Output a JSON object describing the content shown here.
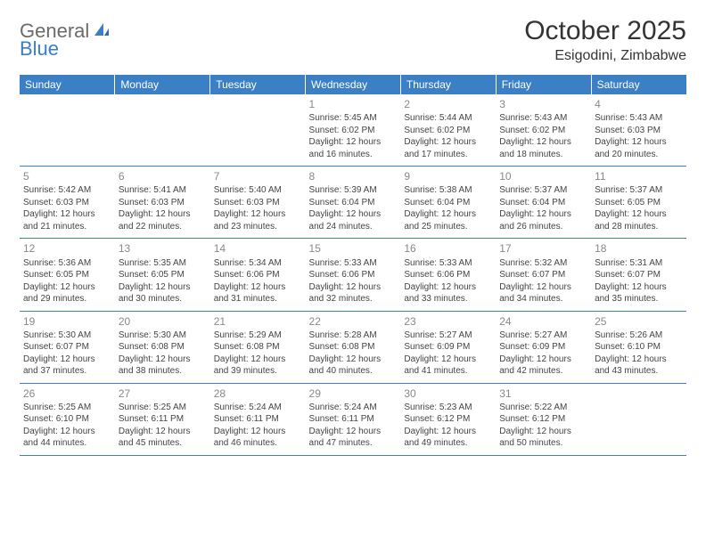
{
  "logo": {
    "general": "General",
    "blue": "Blue"
  },
  "title": "October 2025",
  "location": "Esigodini, Zimbabwe",
  "colors": {
    "header_bg": "#3b7fc4",
    "header_text": "#ffffff",
    "daynum": "#888888",
    "body_text": "#444444",
    "border": "#3b7fc4"
  },
  "weekdays": [
    "Sunday",
    "Monday",
    "Tuesday",
    "Wednesday",
    "Thursday",
    "Friday",
    "Saturday"
  ],
  "weeks": [
    [
      null,
      null,
      null,
      {
        "n": "1",
        "sr": "Sunrise: 5:45 AM",
        "ss": "Sunset: 6:02 PM",
        "d1": "Daylight: 12 hours",
        "d2": "and 16 minutes."
      },
      {
        "n": "2",
        "sr": "Sunrise: 5:44 AM",
        "ss": "Sunset: 6:02 PM",
        "d1": "Daylight: 12 hours",
        "d2": "and 17 minutes."
      },
      {
        "n": "3",
        "sr": "Sunrise: 5:43 AM",
        "ss": "Sunset: 6:02 PM",
        "d1": "Daylight: 12 hours",
        "d2": "and 18 minutes."
      },
      {
        "n": "4",
        "sr": "Sunrise: 5:43 AM",
        "ss": "Sunset: 6:03 PM",
        "d1": "Daylight: 12 hours",
        "d2": "and 20 minutes."
      }
    ],
    [
      {
        "n": "5",
        "sr": "Sunrise: 5:42 AM",
        "ss": "Sunset: 6:03 PM",
        "d1": "Daylight: 12 hours",
        "d2": "and 21 minutes."
      },
      {
        "n": "6",
        "sr": "Sunrise: 5:41 AM",
        "ss": "Sunset: 6:03 PM",
        "d1": "Daylight: 12 hours",
        "d2": "and 22 minutes."
      },
      {
        "n": "7",
        "sr": "Sunrise: 5:40 AM",
        "ss": "Sunset: 6:03 PM",
        "d1": "Daylight: 12 hours",
        "d2": "and 23 minutes."
      },
      {
        "n": "8",
        "sr": "Sunrise: 5:39 AM",
        "ss": "Sunset: 6:04 PM",
        "d1": "Daylight: 12 hours",
        "d2": "and 24 minutes."
      },
      {
        "n": "9",
        "sr": "Sunrise: 5:38 AM",
        "ss": "Sunset: 6:04 PM",
        "d1": "Daylight: 12 hours",
        "d2": "and 25 minutes."
      },
      {
        "n": "10",
        "sr": "Sunrise: 5:37 AM",
        "ss": "Sunset: 6:04 PM",
        "d1": "Daylight: 12 hours",
        "d2": "and 26 minutes."
      },
      {
        "n": "11",
        "sr": "Sunrise: 5:37 AM",
        "ss": "Sunset: 6:05 PM",
        "d1": "Daylight: 12 hours",
        "d2": "and 28 minutes."
      }
    ],
    [
      {
        "n": "12",
        "sr": "Sunrise: 5:36 AM",
        "ss": "Sunset: 6:05 PM",
        "d1": "Daylight: 12 hours",
        "d2": "and 29 minutes."
      },
      {
        "n": "13",
        "sr": "Sunrise: 5:35 AM",
        "ss": "Sunset: 6:05 PM",
        "d1": "Daylight: 12 hours",
        "d2": "and 30 minutes."
      },
      {
        "n": "14",
        "sr": "Sunrise: 5:34 AM",
        "ss": "Sunset: 6:06 PM",
        "d1": "Daylight: 12 hours",
        "d2": "and 31 minutes."
      },
      {
        "n": "15",
        "sr": "Sunrise: 5:33 AM",
        "ss": "Sunset: 6:06 PM",
        "d1": "Daylight: 12 hours",
        "d2": "and 32 minutes."
      },
      {
        "n": "16",
        "sr": "Sunrise: 5:33 AM",
        "ss": "Sunset: 6:06 PM",
        "d1": "Daylight: 12 hours",
        "d2": "and 33 minutes."
      },
      {
        "n": "17",
        "sr": "Sunrise: 5:32 AM",
        "ss": "Sunset: 6:07 PM",
        "d1": "Daylight: 12 hours",
        "d2": "and 34 minutes."
      },
      {
        "n": "18",
        "sr": "Sunrise: 5:31 AM",
        "ss": "Sunset: 6:07 PM",
        "d1": "Daylight: 12 hours",
        "d2": "and 35 minutes."
      }
    ],
    [
      {
        "n": "19",
        "sr": "Sunrise: 5:30 AM",
        "ss": "Sunset: 6:07 PM",
        "d1": "Daylight: 12 hours",
        "d2": "and 37 minutes."
      },
      {
        "n": "20",
        "sr": "Sunrise: 5:30 AM",
        "ss": "Sunset: 6:08 PM",
        "d1": "Daylight: 12 hours",
        "d2": "and 38 minutes."
      },
      {
        "n": "21",
        "sr": "Sunrise: 5:29 AM",
        "ss": "Sunset: 6:08 PM",
        "d1": "Daylight: 12 hours",
        "d2": "and 39 minutes."
      },
      {
        "n": "22",
        "sr": "Sunrise: 5:28 AM",
        "ss": "Sunset: 6:08 PM",
        "d1": "Daylight: 12 hours",
        "d2": "and 40 minutes."
      },
      {
        "n": "23",
        "sr": "Sunrise: 5:27 AM",
        "ss": "Sunset: 6:09 PM",
        "d1": "Daylight: 12 hours",
        "d2": "and 41 minutes."
      },
      {
        "n": "24",
        "sr": "Sunrise: 5:27 AM",
        "ss": "Sunset: 6:09 PM",
        "d1": "Daylight: 12 hours",
        "d2": "and 42 minutes."
      },
      {
        "n": "25",
        "sr": "Sunrise: 5:26 AM",
        "ss": "Sunset: 6:10 PM",
        "d1": "Daylight: 12 hours",
        "d2": "and 43 minutes."
      }
    ],
    [
      {
        "n": "26",
        "sr": "Sunrise: 5:25 AM",
        "ss": "Sunset: 6:10 PM",
        "d1": "Daylight: 12 hours",
        "d2": "and 44 minutes."
      },
      {
        "n": "27",
        "sr": "Sunrise: 5:25 AM",
        "ss": "Sunset: 6:11 PM",
        "d1": "Daylight: 12 hours",
        "d2": "and 45 minutes."
      },
      {
        "n": "28",
        "sr": "Sunrise: 5:24 AM",
        "ss": "Sunset: 6:11 PM",
        "d1": "Daylight: 12 hours",
        "d2": "and 46 minutes."
      },
      {
        "n": "29",
        "sr": "Sunrise: 5:24 AM",
        "ss": "Sunset: 6:11 PM",
        "d1": "Daylight: 12 hours",
        "d2": "and 47 minutes."
      },
      {
        "n": "30",
        "sr": "Sunrise: 5:23 AM",
        "ss": "Sunset: 6:12 PM",
        "d1": "Daylight: 12 hours",
        "d2": "and 49 minutes."
      },
      {
        "n": "31",
        "sr": "Sunrise: 5:22 AM",
        "ss": "Sunset: 6:12 PM",
        "d1": "Daylight: 12 hours",
        "d2": "and 50 minutes."
      },
      null
    ]
  ]
}
